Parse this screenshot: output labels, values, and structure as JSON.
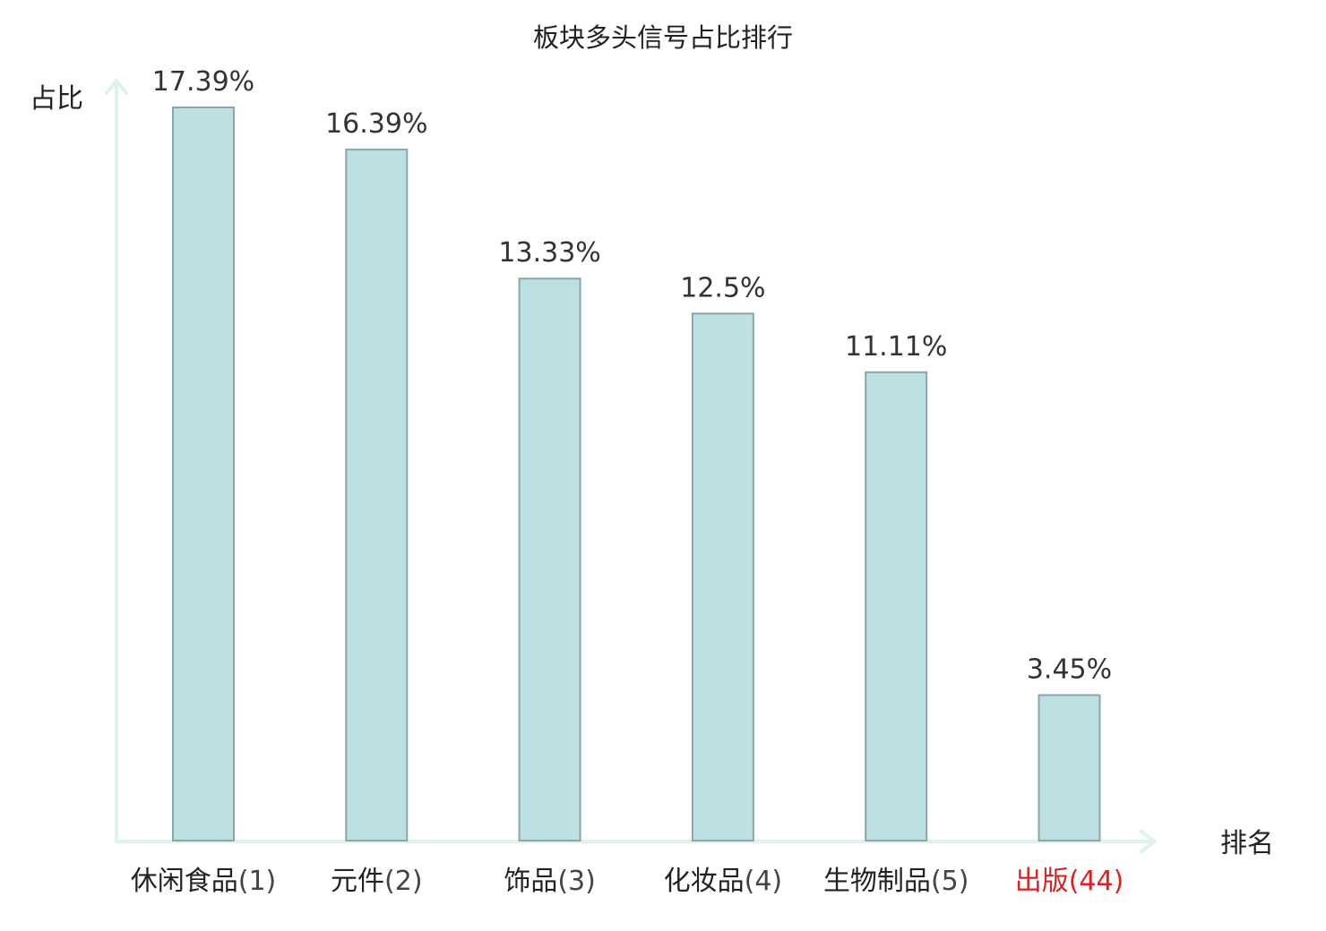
{
  "chart_data": {
    "type": "bar",
    "title": "板块多头信号占比排行",
    "ylabel": "占比",
    "xlabel": "排名",
    "categories": [
      {
        "name": "休闲食品",
        "rank": "(1)",
        "highlight": false
      },
      {
        "name": "元件",
        "rank": "(2)",
        "highlight": false
      },
      {
        "name": "饰品",
        "rank": "(3)",
        "highlight": false
      },
      {
        "name": "化妆品",
        "rank": "(4)",
        "highlight": false
      },
      {
        "name": "生物制品",
        "rank": "(5)",
        "highlight": false
      },
      {
        "name": "出版",
        "rank": "(44)",
        "highlight": true
      }
    ],
    "values": [
      17.39,
      16.39,
      13.33,
      12.5,
      11.11,
      3.45
    ],
    "value_labels": [
      "17.39%",
      "16.39%",
      "13.33%",
      "12.5%",
      "11.11%",
      "3.45%"
    ],
    "ylim": [
      0,
      17.39
    ],
    "grid": false,
    "colors": {
      "bar_fill": "#bde0e2",
      "bar_stroke": "#8aa6a8",
      "axis": "#dff2ef",
      "text": "#222222",
      "rank_text": "#444444",
      "highlight": "#e02020"
    }
  }
}
